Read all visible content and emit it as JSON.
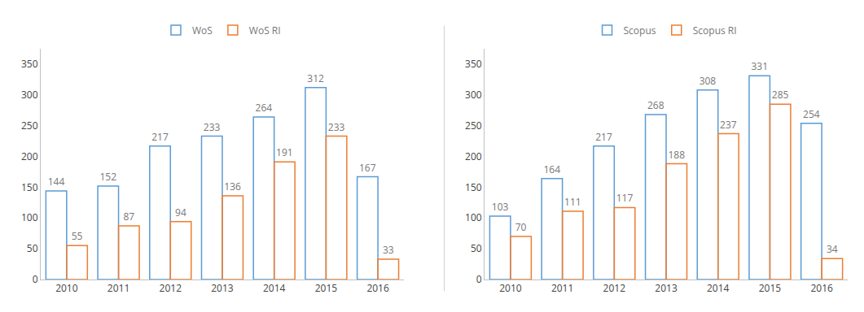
{
  "chart_data": [
    {
      "type": "bar",
      "categories": [
        "2010",
        "2011",
        "2012",
        "2013",
        "2014",
        "2015",
        "2016"
      ],
      "series": [
        {
          "name": "WoS",
          "color": "#5B9BD5",
          "values": [
            144,
            152,
            217,
            233,
            264,
            312,
            167
          ]
        },
        {
          "name": "WoS RI",
          "color": "#ED7D31",
          "values": [
            55,
            87,
            94,
            136,
            191,
            233,
            33
          ]
        }
      ],
      "ylim": [
        0,
        375
      ],
      "yticks": [
        0,
        50,
        100,
        150,
        200,
        250,
        300,
        350
      ],
      "grid": false,
      "legend": "top",
      "data_labels": true
    },
    {
      "type": "bar",
      "categories": [
        "2010",
        "2011",
        "2012",
        "2013",
        "2014",
        "2015",
        "2016"
      ],
      "series": [
        {
          "name": "Scopus",
          "color": "#5B9BD5",
          "values": [
            103,
            164,
            217,
            268,
            308,
            331,
            254
          ]
        },
        {
          "name": "Scopus RI",
          "color": "#ED7D31",
          "values": [
            70,
            111,
            117,
            188,
            237,
            285,
            34
          ]
        }
      ],
      "ylim": [
        0,
        375
      ],
      "yticks": [
        0,
        50,
        100,
        150,
        200,
        250,
        300,
        350
      ],
      "grid": false,
      "legend": "top",
      "data_labels": true
    }
  ]
}
